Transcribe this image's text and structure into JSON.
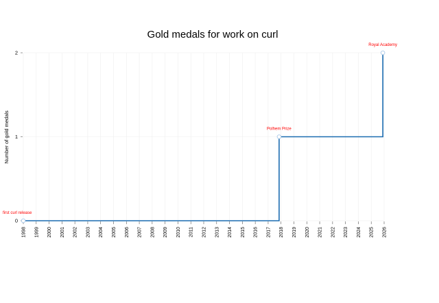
{
  "chart_data": {
    "type": "line",
    "step": "post",
    "title": "Gold medals for work on curl",
    "xlabel": "",
    "ylabel": "Number of gold medals",
    "xlim": [
      1998,
      2026
    ],
    "ylim": [
      0,
      2
    ],
    "x_ticks": [
      "1998",
      "1999",
      "2000",
      "2001",
      "2002",
      "2003",
      "2004",
      "2005",
      "2006",
      "2007",
      "2008",
      "2009",
      "2010",
      "2011",
      "2012",
      "2013",
      "2014",
      "2015",
      "2016",
      "2017",
      "2018",
      "2019",
      "2020",
      "2021",
      "2022",
      "2023",
      "2024",
      "2025",
      "2026"
    ],
    "y_ticks": [
      "0",
      "1",
      "2"
    ],
    "grid": true,
    "series": [
      {
        "color": "#1a6bb0",
        "points": [
          {
            "x": 1998.0,
            "y": 0
          },
          {
            "x": 2017.85,
            "y": 1
          },
          {
            "x": 2025.9,
            "y": 2
          },
          {
            "x": 2026.0,
            "y": 2
          }
        ]
      }
    ],
    "annotations": [
      {
        "text": "first curl release",
        "x": 1998.0,
        "y": 0
      },
      {
        "text": "Polhem Prize",
        "x": 2017.85,
        "y": 1
      },
      {
        "text": "Royal Academy",
        "x": 2025.9,
        "y": 2
      }
    ],
    "annotation_color": "#ff0000"
  }
}
